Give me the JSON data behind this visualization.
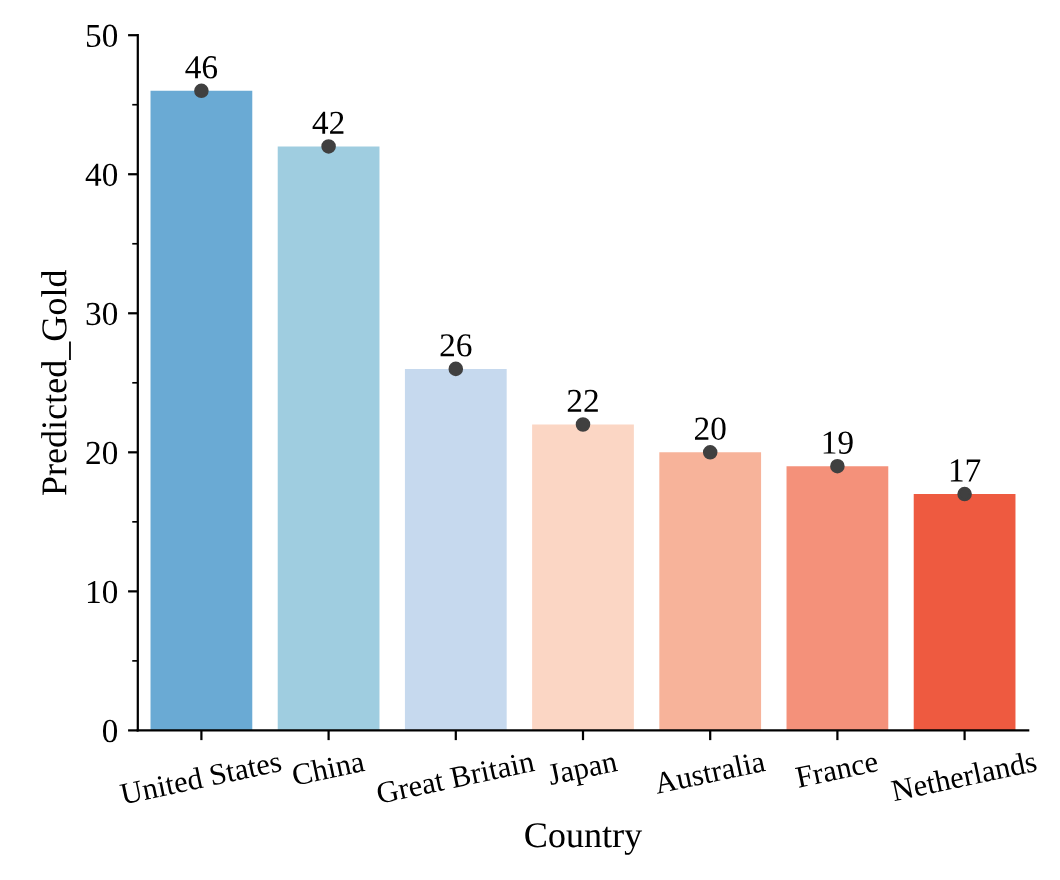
{
  "chart_data": {
    "type": "bar",
    "xlabel": "Country",
    "ylabel": "Predicted_Gold",
    "categories": [
      "United States",
      "China",
      "Great Britain",
      "Japan",
      "Australia",
      "France",
      "Netherlands"
    ],
    "series": [
      {
        "colors": [
          "#6aaad4",
          "#9fcde0",
          "#c6d9ee",
          "#fbd6c4",
          "#f7b39a",
          "#f4917a",
          "#ee5a40"
        ],
        "values": [
          46,
          42,
          26,
          22,
          20,
          19,
          17
        ]
      },
      {
        "type": "scatter",
        "color": "#404040",
        "x": [
          "United States",
          "China",
          "Great Britain",
          "Japan",
          "Australia",
          "France",
          "Netherlands"
        ],
        "values": [
          46,
          42,
          26,
          22,
          20,
          19,
          17
        ],
        "value_labels": [
          "46",
          "42",
          "26",
          "22",
          "20",
          "19",
          "17"
        ]
      }
    ],
    "ylim": [
      0,
      50
    ],
    "yticks": [
      0,
      10,
      20,
      30,
      40,
      50
    ],
    "grid": false,
    "legend": false
  }
}
